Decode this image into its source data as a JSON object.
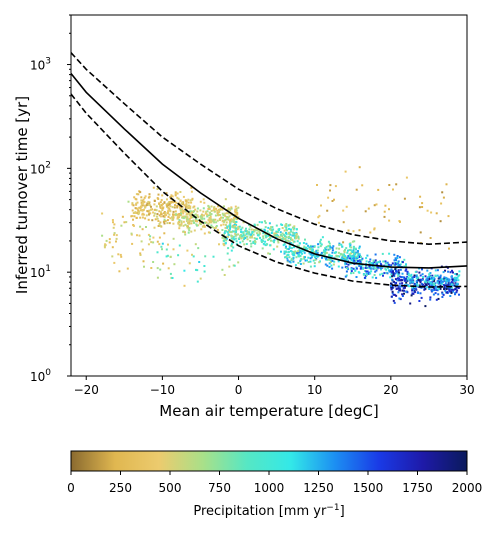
{
  "chart_data": {
    "type": "scatter",
    "xlabel": "Mean air temperature [degC]",
    "ylabel": "Inferred turnover time [yr]",
    "xlim": [
      -22,
      30
    ],
    "ylim": [
      1,
      3000
    ],
    "yscale": "log",
    "x_ticks": [
      -20,
      -10,
      0,
      10,
      20,
      30
    ],
    "x_tick_labels": [
      "−20",
      "−10",
      "0",
      "10",
      "20",
      "30"
    ],
    "y_ticks": [
      1,
      10,
      100,
      1000
    ],
    "y_tick_labels": [
      "10",
      "10",
      "10",
      "10"
    ],
    "y_tick_exponents": [
      "0",
      "1",
      "2",
      "3"
    ],
    "grid": false,
    "color_variable": "precipitation",
    "colorbar": {
      "label_main": "Precipitation [mm yr",
      "label_exp": "−1",
      "label_end": "]",
      "range": [
        0,
        2000
      ],
      "ticks": [
        0,
        250,
        500,
        750,
        1000,
        1250,
        1500,
        1750,
        2000
      ],
      "tick_labels": [
        "0",
        "250",
        "500",
        "750",
        "1000",
        "1250",
        "1500",
        "1750",
        "2000"
      ],
      "colors": [
        "#8a6a2f",
        "#e0b750",
        "#eccb6e",
        "#a9e089",
        "#56e7c4",
        "#33e8e8",
        "#1c8ff2",
        "#1a3ae6",
        "#1e1aa8",
        "#0a1a5c"
      ]
    },
    "curves": [
      {
        "style": "solid",
        "color": "#000000",
        "x": [
          -22,
          -20,
          -15,
          -10,
          -5,
          0,
          5,
          10,
          15,
          20,
          25,
          30
        ],
        "y": [
          820,
          540,
          240,
          110,
          58,
          33,
          21,
          15,
          12.2,
          11.2,
          11.0,
          11.5
        ]
      },
      {
        "style": "dashed",
        "color": "#000000",
        "x": [
          -22,
          -20,
          -15,
          -10,
          -5,
          0,
          5,
          10,
          15,
          20,
          25,
          30
        ],
        "y": [
          1300,
          900,
          420,
          200,
          110,
          63,
          41,
          29,
          23,
          20,
          18.6,
          19.5
        ]
      },
      {
        "style": "dashed",
        "color": "#000000",
        "x": [
          -22,
          -20,
          -15,
          -10,
          -5,
          0,
          5,
          10,
          15,
          20,
          25,
          30
        ],
        "y": [
          520,
          340,
          140,
          60,
          31,
          18,
          12.5,
          9.8,
          8.2,
          7.5,
          7.2,
          7.3
        ]
      }
    ],
    "point_clusters": [
      {
        "x_range": [
          -14,
          -6
        ],
        "y_center": 42,
        "y_spread": 0.14,
        "precip": [
          150,
          550
        ],
        "count": 260
      },
      {
        "x_range": [
          -8,
          0
        ],
        "y_center": 33,
        "y_spread": 0.11,
        "precip": [
          300,
          750
        ],
        "count": 300
      },
      {
        "x_range": [
          -2,
          8
        ],
        "y_center": 23,
        "y_spread": 0.1,
        "precip": [
          500,
          1200
        ],
        "count": 340
      },
      {
        "x_range": [
          6,
          16
        ],
        "y_center": 15,
        "y_spread": 0.1,
        "precip": [
          600,
          1400
        ],
        "count": 320
      },
      {
        "x_range": [
          14,
          22
        ],
        "y_center": 11.5,
        "y_spread": 0.09,
        "precip": [
          800,
          1700
        ],
        "count": 220
      },
      {
        "x_range": [
          20,
          29
        ],
        "y_center": 7.5,
        "y_spread": 0.12,
        "precip": [
          1300,
          2000
        ],
        "count": 320
      },
      {
        "x_range": [
          22,
          29
        ],
        "y_center": 8.5,
        "y_spread": 0.08,
        "precip": [
          900,
          1400
        ],
        "count": 110
      },
      {
        "x_range": [
          -18,
          -8
        ],
        "y_center": 22,
        "y_spread": 0.3,
        "precip": [
          200,
          700
        ],
        "count": 80
      },
      {
        "x_range": [
          -12,
          0
        ],
        "y_center": 14,
        "y_spread": 0.22,
        "precip": [
          400,
          1200
        ],
        "count": 50
      },
      {
        "x_range": [
          10,
          28
        ],
        "y_center": 45,
        "y_spread": 0.35,
        "precip": [
          100,
          450
        ],
        "count": 60
      }
    ]
  }
}
